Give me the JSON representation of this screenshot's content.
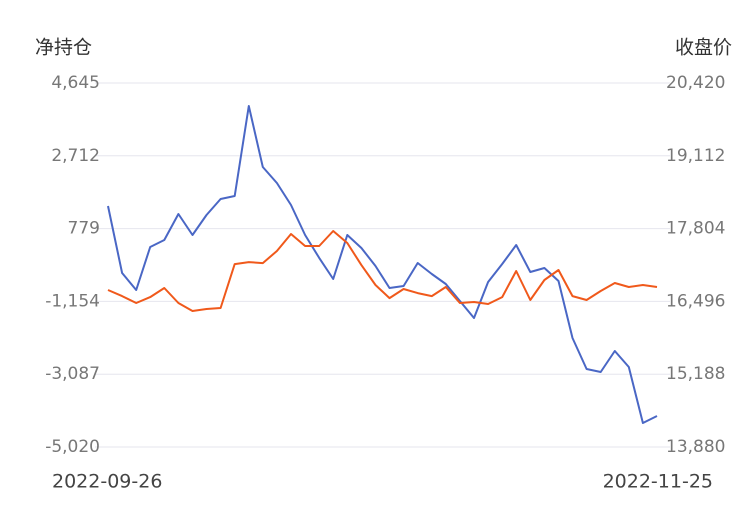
{
  "chart_data": {
    "type": "line",
    "y_label": "净持仓",
    "y2_label": "收盘价",
    "categories": [
      "2022-09-26",
      null,
      null,
      null,
      null,
      null,
      null,
      null,
      null,
      null,
      null,
      null,
      null,
      null,
      null,
      null,
      null,
      null,
      null,
      null,
      null,
      null,
      null,
      null,
      null,
      null,
      null,
      null,
      null,
      null,
      null,
      null,
      null,
      null,
      null,
      null,
      null,
      null,
      null,
      "2022-11-25"
    ],
    "series": [
      {
        "name": "净持仓",
        "color": "#4a67c5",
        "values": [
          1379,
          -399,
          -851,
          291,
          477,
          1167,
          609,
          1140,
          1565,
          1645,
          4034,
          2415,
          1990,
          1406,
          609,
          1,
          -559,
          609,
          264,
          -214,
          -798,
          -745,
          -134,
          -426,
          -692,
          -1143,
          -1594,
          -639,
          -161,
          344,
          -373,
          -267,
          -612,
          -2125,
          -2948,
          -3028,
          -2470,
          -2895,
          -4382,
          -4196
        ]
      },
      {
        "name": "收盘价",
        "color": "#f0591b",
        "axis": "y2",
        "values": [
          16700,
          16592,
          16467,
          16574,
          16736,
          16467,
          16323,
          16359,
          16377,
          17167,
          17203,
          17185,
          17401,
          17707,
          17491,
          17491,
          17760,
          17545,
          17149,
          16790,
          16556,
          16718,
          16646,
          16592,
          16754,
          16467,
          16485,
          16449,
          16574,
          17042,
          16521,
          16880,
          17060,
          16592,
          16521,
          16682,
          16826,
          16754,
          16790,
          16754
        ]
      }
    ],
    "ylim": [
      -5020,
      4645
    ],
    "yticks": [
      {
        "value": -5020,
        "label": "-5,020"
      },
      {
        "value": -3087,
        "label": "-3,087"
      },
      {
        "value": -1154,
        "label": "-1,154"
      },
      779,
      {
        "value": 2712,
        "label": "2,712"
      },
      {
        "value": 4645,
        "label": "4,645"
      }
    ],
    "y2lim": [
      13880,
      20420
    ],
    "y2ticks": [
      {
        "value": 13880,
        "label": "13,880"
      },
      {
        "value": 15188,
        "label": "15,188"
      },
      {
        "value": 16496,
        "label": "16,496"
      },
      {
        "value": 17804,
        "label": "17,804"
      },
      {
        "value": 19112,
        "label": "19,112"
      },
      {
        "value": 20420,
        "label": "20,420"
      }
    ],
    "grid": true
  }
}
